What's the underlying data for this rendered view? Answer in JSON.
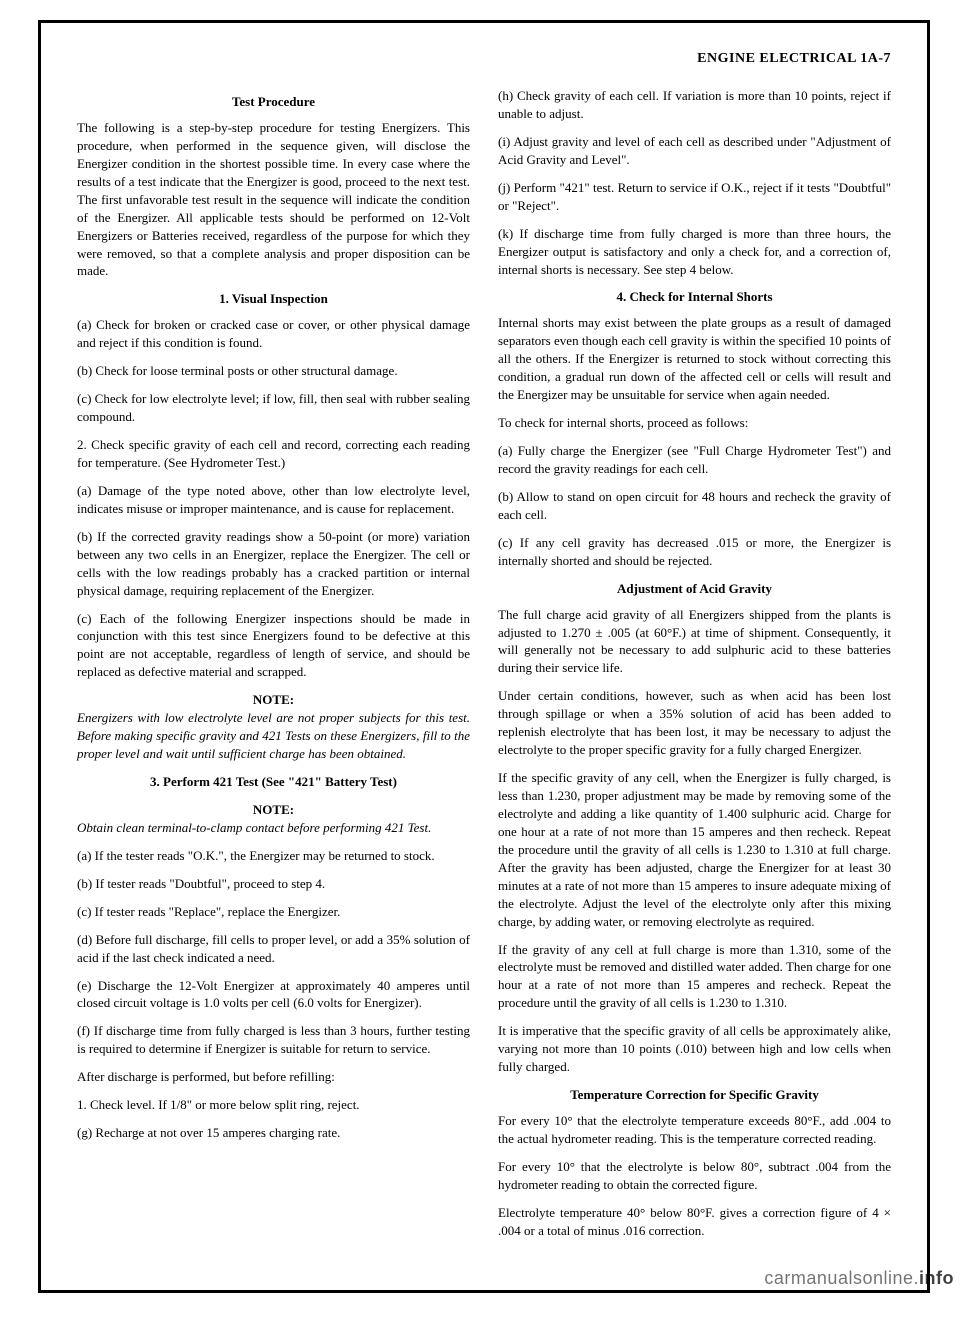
{
  "page": {
    "header_right": "ENGINE ELECTRICAL  1A-7"
  },
  "left": {
    "h1": "Test Procedure",
    "p1": "The following is a step-by-step procedure for testing Energizers. This procedure, when performed in the sequence given, will disclose the Energizer condition in the shortest possible time. In every case where the results of a test indicate that the Energizer is good, proceed to the next test. The first unfavorable test result in the sequence will indicate the condition of the Energizer. All applicable tests should be performed on 12-Volt Energizers or Batteries received, regardless of the purpose for which they were removed, so that a complete analysis and proper disposition can be made.",
    "h2": "1. Visual Inspection",
    "p2a": "(a) Check for broken or cracked case or cover, or other physical damage and reject if this condition is found.",
    "p2b": "(b) Check for loose terminal posts or other structural damage.",
    "p2c": "(c) Check for low electrolyte level; if low, fill, then seal with rubber sealing compound.",
    "p3": "2. Check specific gravity of each cell and record, correcting each reading for temperature. (See Hydrometer Test.)",
    "p4": "(a) Damage of the type noted above, other than low electrolyte level, indicates misuse or improper maintenance, and is cause for replacement.",
    "p5": "(b) If the corrected gravity readings show a 50-point (or more) variation between any two cells in an Energizer, replace the Energizer. The cell or cells with the low readings probably has a cracked partition or internal physical damage, requiring replacement of the Energizer.",
    "p6": "(c) Each of the following Energizer inspections should be made in conjunction with this test since Energizers found to be defective at this point are not acceptable, regardless of length of service, and should be replaced as defective material and scrapped.",
    "note1_head": "NOTE:",
    "note1_body": "Energizers with low electrolyte level are not proper subjects for this test. Before making specific gravity and 421 Tests on these Energizers, fill to the proper level and wait until sufficient charge has been obtained.",
    "h3": "3. Perform 421 Test (See \"421\" Battery Test)",
    "note2_head": "NOTE:",
    "note2_body": "Obtain clean terminal-to-clamp contact before performing 421 Test.",
    "p7a": "(a) If the tester reads \"O.K.\", the Energizer may be returned to stock.",
    "p7b": "(b) If tester reads \"Doubtful\", proceed to step 4.",
    "p7c": "(c) If tester reads \"Replace\", replace the Energizer.",
    "p7d": "(d) Before full discharge, fill cells to proper level, or add a 35% solution of acid if the last check indicated a need.",
    "p7e": "(e) Discharge the 12-Volt Energizer at approximately 40 amperes until closed circuit voltage is 1.0 volts per cell (6.0 volts for Energizer).",
    "p7f": "(f) If discharge time from fully charged is less than 3 hours, further testing is required to determine if Energizer is suitable for return to service.",
    "p8": "After discharge is performed, but before refilling:",
    "p8a": "1. Check level. If 1/8\" or more below split ring, reject.",
    "p7g": "(g) Recharge at not over 15 amperes charging rate."
  },
  "right": {
    "p1": "(h) Check gravity of each cell. If variation is more than 10 points, reject if unable to adjust.",
    "p2": "(i) Adjust gravity and level of each cell as described under \"Adjustment of Acid Gravity and Level\".",
    "p3": "(j) Perform \"421\" test. Return to service if O.K., reject if it tests \"Doubtful\" or \"Reject\".",
    "p4": "(k) If discharge time from fully charged is more than three hours, the Energizer output is satisfactory and only a check for, and a correction of, internal shorts is necessary. See step 4 below.",
    "h1": "4. Check for Internal Shorts",
    "p5": "Internal shorts may exist between the plate groups as a result of damaged separators even though each cell gravity is within the specified 10 points of all the others. If the Energizer is returned to stock without correcting this condition, a gradual run down of the affected cell or cells will result and the Energizer may be unsuitable for service when again needed.",
    "p6": "To check for internal shorts, proceed as follows:",
    "p6a": "(a) Fully charge the Energizer (see \"Full Charge Hydrometer Test\") and record the gravity readings for each cell.",
    "p6b": "(b) Allow to stand on open circuit for 48 hours and recheck the gravity of each cell.",
    "p6c": "(c) If any cell gravity has decreased .015 or more, the Energizer is internally shorted and should be rejected.",
    "h2": "Adjustment of Acid Gravity",
    "p7": "The full charge acid gravity of all Energizers shipped from the plants is adjusted to 1.270 ± .005 (at 60°F.) at time of shipment. Consequently, it will generally not be necessary to add sulphuric acid to these batteries during their service life.",
    "p8": "Under certain conditions, however, such as when acid has been lost through spillage or when a 35% solution of acid has been added to replenish electrolyte that has been lost, it may be necessary to adjust the electrolyte to the proper specific gravity for a fully charged Energizer.",
    "p9": "If the specific gravity of any cell, when the Energizer is fully charged, is less than 1.230, proper adjustment may be made by removing some of the electrolyte and adding a like quantity of 1.400 sulphuric acid. Charge for one hour at a rate of not more than 15 amperes and then recheck. Repeat the procedure until the gravity of all cells is 1.230 to 1.310 at full charge. After the gravity has been adjusted, charge the Energizer for at least 30 minutes at a rate of not more than 15 amperes to insure adequate mixing of the electrolyte. Adjust the level of the electrolyte only after this mixing charge, by adding water, or removing electrolyte as required.",
    "p10": "If the gravity of any cell at full charge is more than 1.310, some of the electrolyte must be removed and distilled water added. Then charge for one hour at a rate of not more than 15 amperes and recheck. Repeat the procedure until the gravity of all cells is 1.230 to 1.310.",
    "p11": "It is imperative that the specific gravity of all cells be approximately alike, varying not more than 10 points (.010) between high and low cells when fully charged.",
    "h3": "Temperature Correction for Specific Gravity",
    "p12": "For every 10° that the electrolyte temperature exceeds 80°F., add .004 to the actual hydrometer reading. This is the temperature corrected reading.",
    "p13": "For every 10° that the electrolyte is below 80°, subtract .004 from the hydrometer reading to obtain the corrected figure.",
    "p14": "Electrolyte temperature 40° below 80°F. gives a correction figure of 4 × .004 or a total of minus .016 correction."
  },
  "watermark": {
    "pre": "carmanualsonline.",
    "suf": "info"
  }
}
